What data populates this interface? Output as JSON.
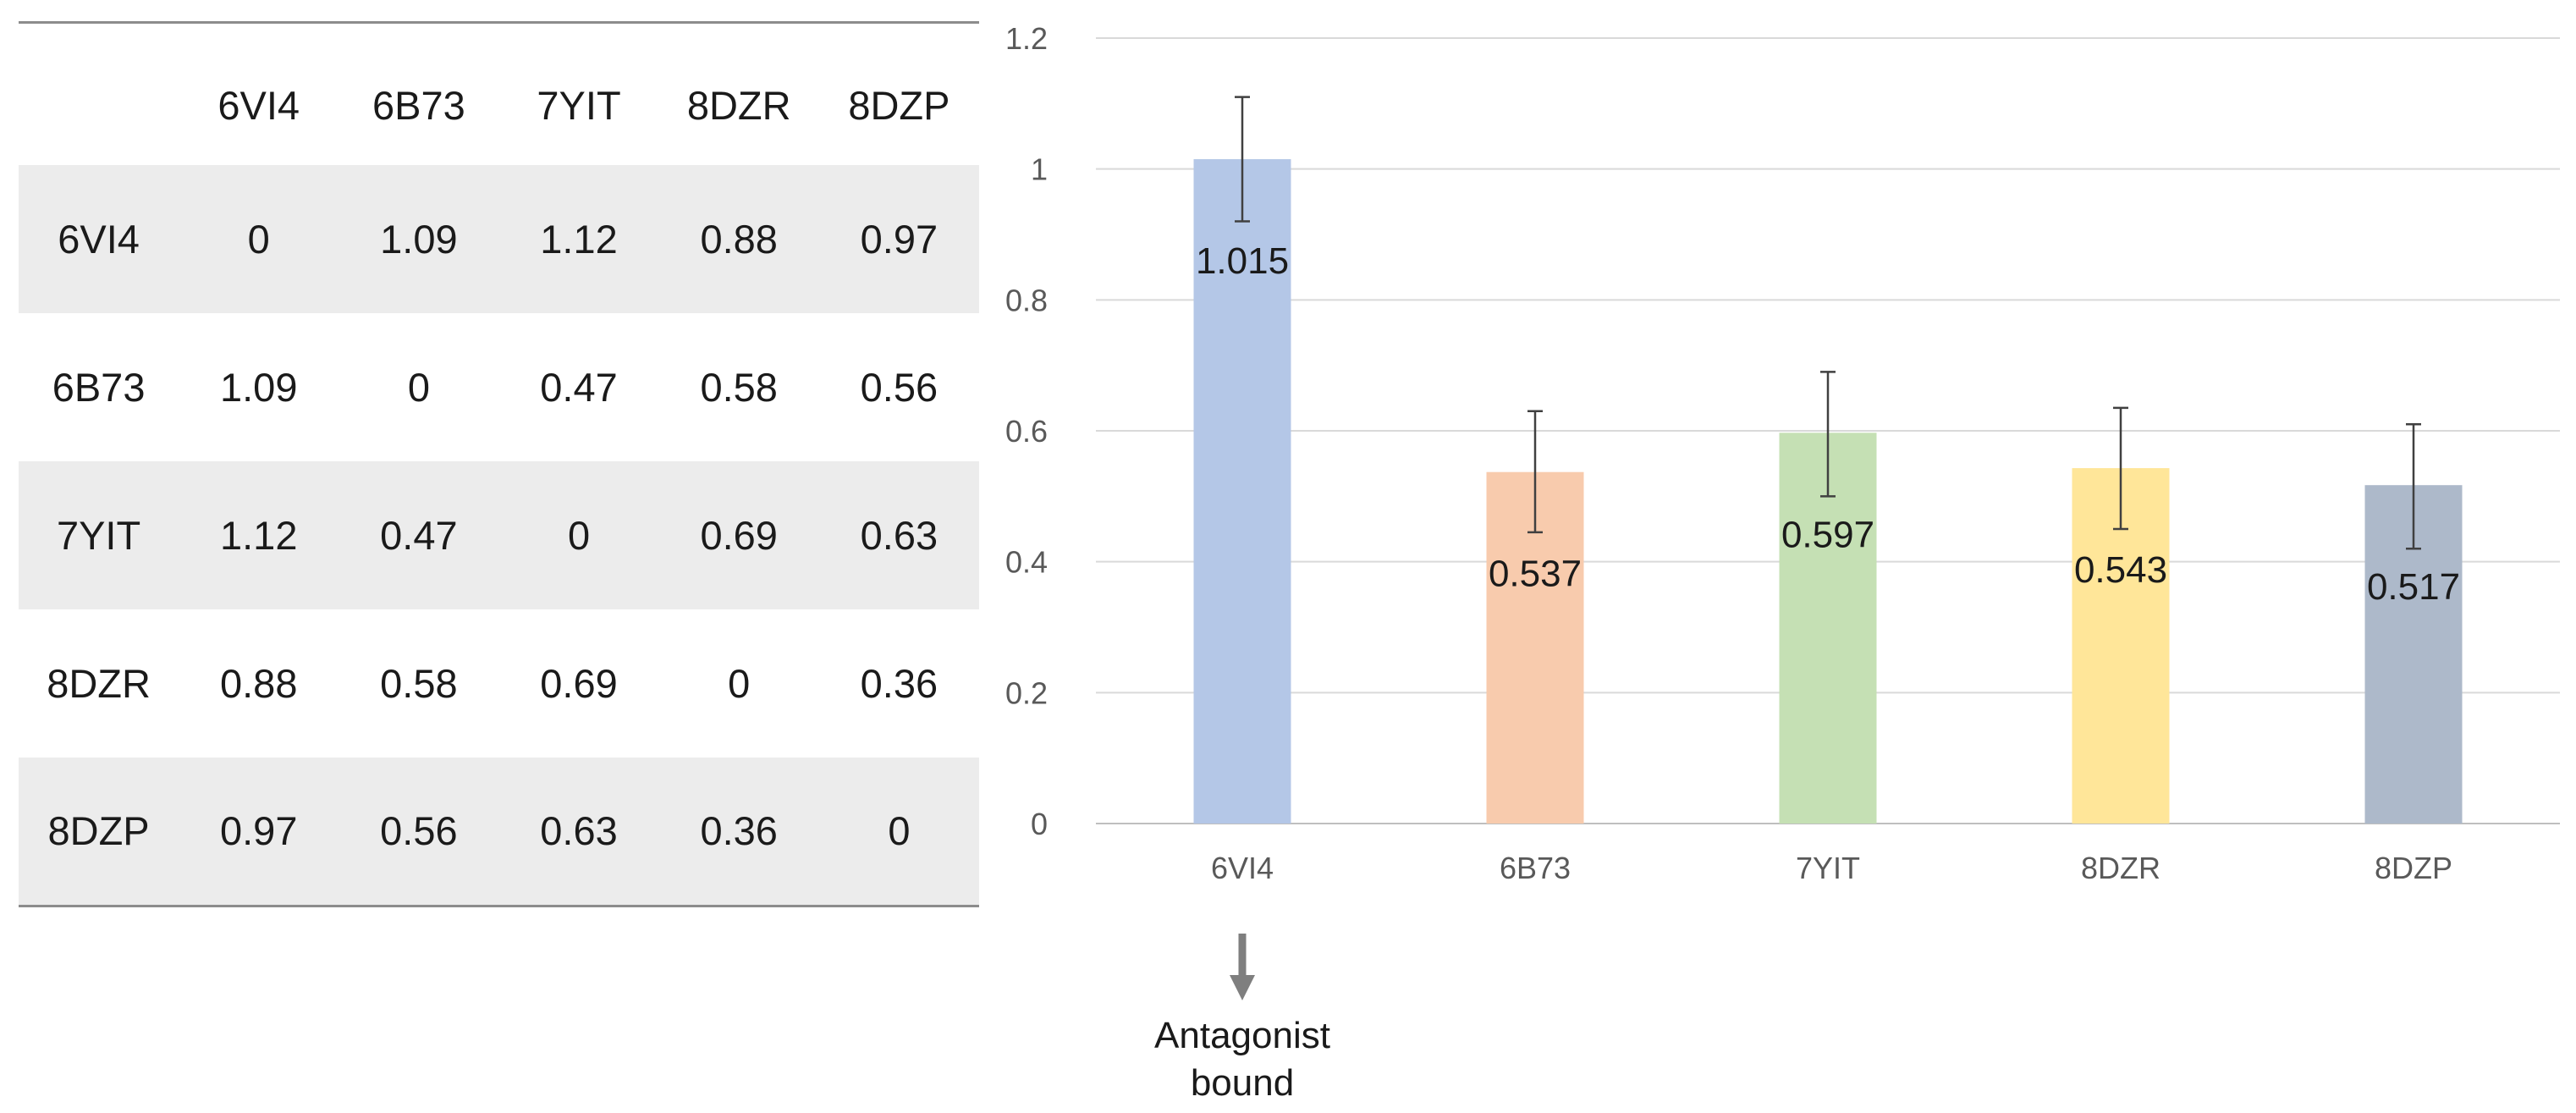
{
  "table": {
    "header": [
      "",
      "6VI4",
      "6B73",
      "7YIT",
      "8DZR",
      "8DZP"
    ],
    "rows": [
      [
        "6VI4",
        "0",
        "1.09",
        "1.12",
        "0.88",
        "0.97"
      ],
      [
        "6B73",
        "1.09",
        "0",
        "0.47",
        "0.58",
        "0.56"
      ],
      [
        "7YIT",
        "1.12",
        "0.47",
        "0",
        "0.69",
        "0.63"
      ],
      [
        "8DZR",
        "0.88",
        "0.58",
        "0.69",
        "0",
        "0.36"
      ],
      [
        "8DZP",
        "0.97",
        "0.56",
        "0.63",
        "0.36",
        "0"
      ]
    ]
  },
  "chart_data": {
    "type": "bar",
    "title": "",
    "xlabel": "",
    "ylabel": "",
    "categories": [
      "6VI4",
      "6B73",
      "7YIT",
      "8DZR",
      "8DZP"
    ],
    "values": [
      1.015,
      0.537,
      0.597,
      0.543,
      0.517
    ],
    "data_labels": [
      "1.015",
      "0.537",
      "0.597",
      "0.543",
      "0.517"
    ],
    "error_low": [
      0.92,
      0.445,
      0.5,
      0.45,
      0.42
    ],
    "error_high": [
      1.11,
      0.63,
      0.69,
      0.635,
      0.61
    ],
    "ylim": [
      0,
      1.2
    ],
    "yticks": [
      0,
      0.2,
      0.4,
      0.6,
      0.8,
      1,
      1.2
    ],
    "ytick_labels": [
      "0",
      "0.2",
      "0.4",
      "0.6",
      "0.8",
      "1",
      "1.2"
    ],
    "grid": true,
    "colors": [
      "#b4c7e7",
      "#f8cbad",
      "#c5e0b4",
      "#ffe699",
      "#adb9ca"
    ],
    "annotation": {
      "category": "6VI4",
      "lines": [
        "Antagonist",
        "bound"
      ],
      "arrow_color": "#7f7f7f"
    }
  }
}
